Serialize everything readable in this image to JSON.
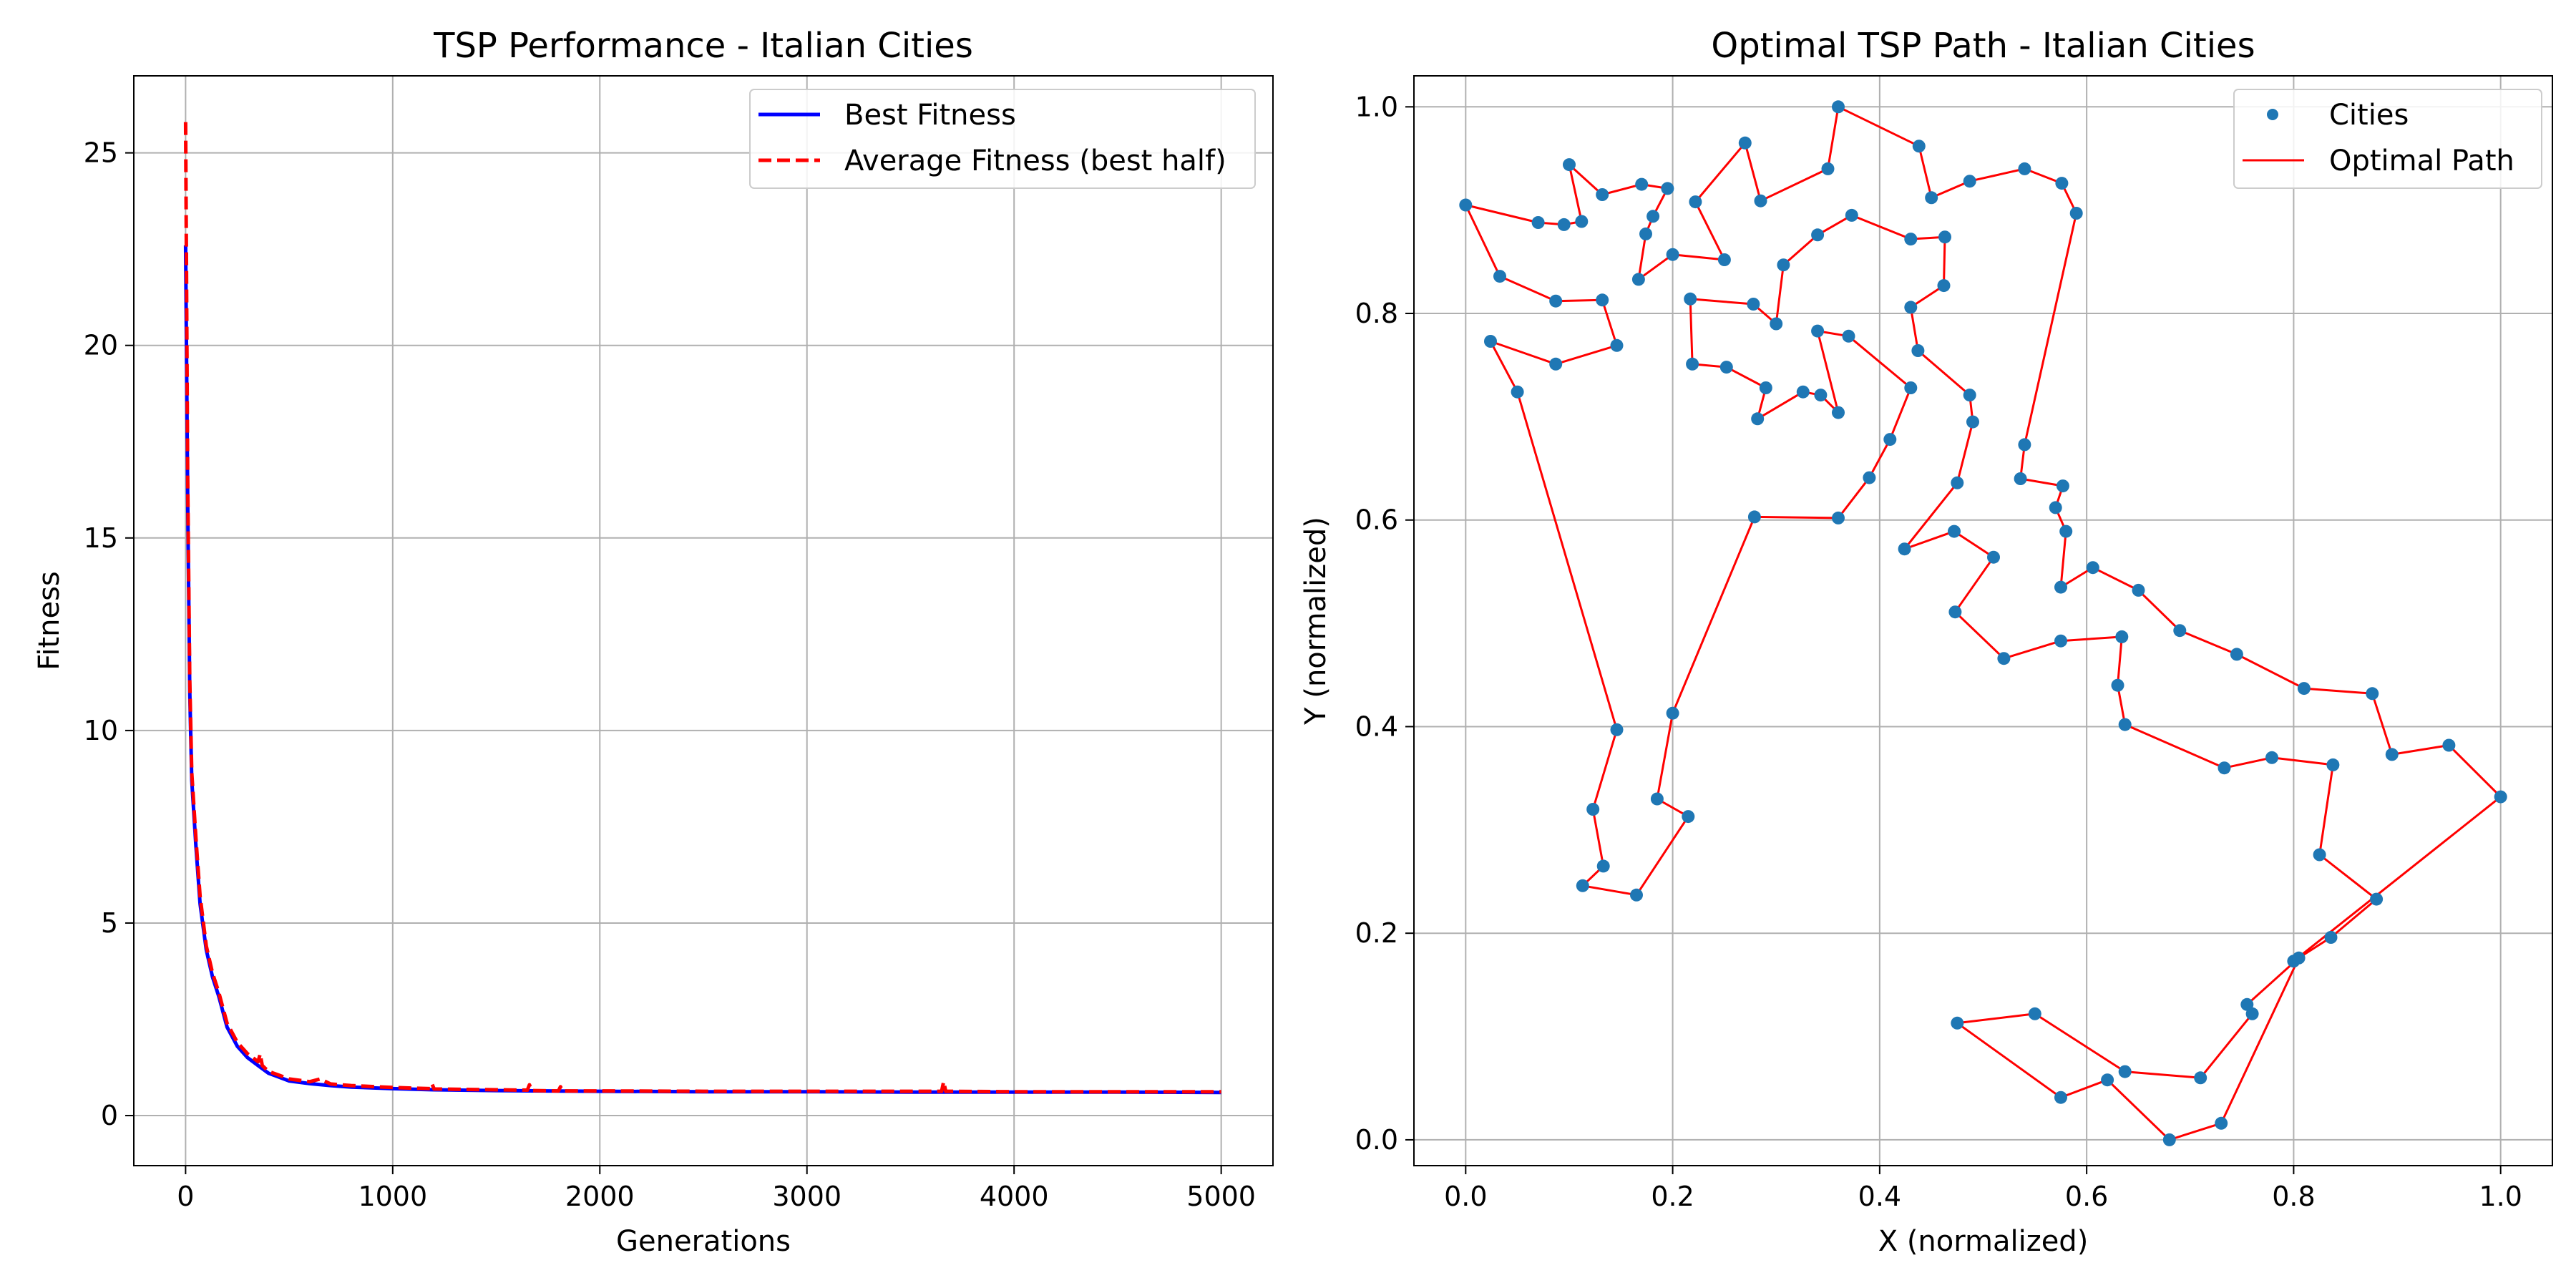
{
  "colors": {
    "best": "#0000ff",
    "average": "#ff0000",
    "city": "#1f77b4",
    "path": "#ff0000",
    "grid": "#b0b0b0",
    "axes": "#000000"
  },
  "chart_data": [
    {
      "type": "line",
      "title": "TSP Performance - Italian Cities",
      "xlabel": "Generations",
      "ylabel": "Fitness",
      "xlim": [
        -250,
        5250
      ],
      "ylim": [
        -1.3,
        27.0
      ],
      "xticks": [
        0,
        1000,
        2000,
        3000,
        4000,
        5000
      ],
      "yticks": [
        0,
        5,
        10,
        15,
        20,
        25
      ],
      "grid": true,
      "legend": "upper right",
      "series": [
        {
          "name": "Best Fitness",
          "style": "solid",
          "x": [
            0,
            10,
            20,
            30,
            50,
            70,
            100,
            130,
            160,
            200,
            250,
            300,
            350,
            400,
            450,
            500,
            600,
            700,
            800,
            1000,
            1200,
            1500,
            2000,
            2500,
            3000,
            3500,
            4000,
            4500,
            5000
          ],
          "values": [
            22.6,
            16.0,
            11.0,
            8.7,
            7.0,
            5.5,
            4.3,
            3.6,
            3.1,
            2.3,
            1.8,
            1.5,
            1.3,
            1.1,
            1.0,
            0.9,
            0.83,
            0.78,
            0.74,
            0.7,
            0.67,
            0.65,
            0.63,
            0.62,
            0.62,
            0.61,
            0.61,
            0.61,
            0.6
          ]
        },
        {
          "name": "Average Fitness (best half)",
          "style": "dashed",
          "x": [
            0,
            10,
            20,
            30,
            50,
            70,
            100,
            130,
            160,
            200,
            250,
            300,
            350,
            360,
            370,
            400,
            450,
            500,
            600,
            650,
            700,
            800,
            1000,
            1180,
            1190,
            1200,
            1500,
            1650,
            1660,
            1670,
            1800,
            1810,
            1820,
            2000,
            2500,
            3000,
            3500,
            3650,
            3660,
            3670,
            4000,
            4500,
            5000
          ],
          "values": [
            25.8,
            16.5,
            11.3,
            8.9,
            7.2,
            5.7,
            4.4,
            3.7,
            3.2,
            2.4,
            1.9,
            1.6,
            1.4,
            1.6,
            1.3,
            1.15,
            1.05,
            0.95,
            0.88,
            0.95,
            0.82,
            0.78,
            0.73,
            0.7,
            0.82,
            0.69,
            0.67,
            0.66,
            0.8,
            0.65,
            0.64,
            0.75,
            0.64,
            0.64,
            0.63,
            0.63,
            0.63,
            0.63,
            0.88,
            0.63,
            0.62,
            0.62,
            0.62
          ]
        }
      ]
    },
    {
      "type": "scatter",
      "title": "Optimal TSP Path - Italian Cities",
      "xlabel": "X (normalized)",
      "ylabel": "Y (normalized)",
      "xlim": [
        -0.05,
        1.05
      ],
      "ylim": [
        -0.025,
        1.03
      ],
      "xticks": [
        0.0,
        0.2,
        0.4,
        0.6,
        0.8,
        1.0
      ],
      "yticks": [
        0.0,
        0.2,
        0.4,
        0.6,
        0.8,
        1.0
      ],
      "tick_format": 1,
      "grid": true,
      "legend": "upper right",
      "series": [
        {
          "name": "Cities",
          "style": "markers"
        },
        {
          "name": "Optimal Path",
          "style": "closed-line"
        }
      ],
      "path": [
        [
          0.0,
          0.905
        ],
        [
          0.07,
          0.888
        ],
        [
          0.095,
          0.886
        ],
        [
          0.112,
          0.889
        ],
        [
          0.1,
          0.944
        ],
        [
          0.132,
          0.915
        ],
        [
          0.17,
          0.925
        ],
        [
          0.195,
          0.921
        ],
        [
          0.181,
          0.894
        ],
        [
          0.174,
          0.877
        ],
        [
          0.167,
          0.833
        ],
        [
          0.2,
          0.857
        ],
        [
          0.25,
          0.852
        ],
        [
          0.222,
          0.908
        ],
        [
          0.27,
          0.965
        ],
        [
          0.285,
          0.909
        ],
        [
          0.35,
          0.94
        ],
        [
          0.36,
          1.0
        ],
        [
          0.438,
          0.962
        ],
        [
          0.45,
          0.912
        ],
        [
          0.487,
          0.928
        ],
        [
          0.54,
          0.94
        ],
        [
          0.576,
          0.926
        ],
        [
          0.59,
          0.897
        ],
        [
          0.54,
          0.673
        ],
        [
          0.536,
          0.64
        ],
        [
          0.577,
          0.633
        ],
        [
          0.57,
          0.612
        ],
        [
          0.58,
          0.589
        ],
        [
          0.575,
          0.535
        ],
        [
          0.606,
          0.554
        ],
        [
          0.65,
          0.532
        ],
        [
          0.69,
          0.493
        ],
        [
          0.745,
          0.47
        ],
        [
          0.81,
          0.437
        ],
        [
          0.876,
          0.432
        ],
        [
          0.895,
          0.373
        ],
        [
          0.95,
          0.382
        ],
        [
          1.0,
          0.332
        ],
        [
          0.8,
          0.173
        ],
        [
          0.836,
          0.196
        ],
        [
          0.88,
          0.233
        ],
        [
          0.825,
          0.276
        ],
        [
          0.838,
          0.363
        ],
        [
          0.779,
          0.37
        ],
        [
          0.733,
          0.36
        ],
        [
          0.637,
          0.402
        ],
        [
          0.63,
          0.44
        ],
        [
          0.634,
          0.487
        ],
        [
          0.575,
          0.483
        ],
        [
          0.52,
          0.466
        ],
        [
          0.473,
          0.511
        ],
        [
          0.51,
          0.564
        ],
        [
          0.472,
          0.589
        ],
        [
          0.424,
          0.572
        ],
        [
          0.475,
          0.636
        ],
        [
          0.49,
          0.695
        ],
        [
          0.487,
          0.721
        ],
        [
          0.437,
          0.764
        ],
        [
          0.43,
          0.806
        ],
        [
          0.462,
          0.827
        ],
        [
          0.463,
          0.874
        ],
        [
          0.43,
          0.872
        ],
        [
          0.373,
          0.895
        ],
        [
          0.34,
          0.876
        ],
        [
          0.307,
          0.847
        ],
        [
          0.3,
          0.79
        ],
        [
          0.278,
          0.809
        ],
        [
          0.217,
          0.814
        ],
        [
          0.219,
          0.751
        ],
        [
          0.252,
          0.748
        ],
        [
          0.29,
          0.728
        ],
        [
          0.282,
          0.698
        ],
        [
          0.326,
          0.724
        ],
        [
          0.343,
          0.721
        ],
        [
          0.36,
          0.704
        ],
        [
          0.34,
          0.783
        ],
        [
          0.37,
          0.778
        ],
        [
          0.43,
          0.728
        ],
        [
          0.41,
          0.678
        ],
        [
          0.39,
          0.641
        ],
        [
          0.36,
          0.602
        ],
        [
          0.279,
          0.603
        ],
        [
          0.2,
          0.413
        ],
        [
          0.185,
          0.33
        ],
        [
          0.215,
          0.313
        ],
        [
          0.165,
          0.237
        ],
        [
          0.113,
          0.246
        ],
        [
          0.133,
          0.265
        ],
        [
          0.123,
          0.32
        ],
        [
          0.146,
          0.397
        ],
        [
          0.05,
          0.724
        ],
        [
          0.024,
          0.773
        ],
        [
          0.087,
          0.751
        ],
        [
          0.146,
          0.769
        ],
        [
          0.132,
          0.813
        ],
        [
          0.087,
          0.812
        ],
        [
          0.033,
          0.836
        ]
      ],
      "tail_path": [
        [
          0.475,
          0.113
        ],
        [
          0.55,
          0.122
        ],
        [
          0.637,
          0.066
        ],
        [
          0.71,
          0.06
        ],
        [
          0.76,
          0.122
        ],
        [
          0.755,
          0.131
        ],
        [
          0.805,
          0.176
        ],
        [
          0.73,
          0.016
        ],
        [
          0.68,
          0.0
        ],
        [
          0.62,
          0.058
        ],
        [
          0.575,
          0.041
        ],
        [
          0.475,
          0.113
        ]
      ]
    }
  ]
}
